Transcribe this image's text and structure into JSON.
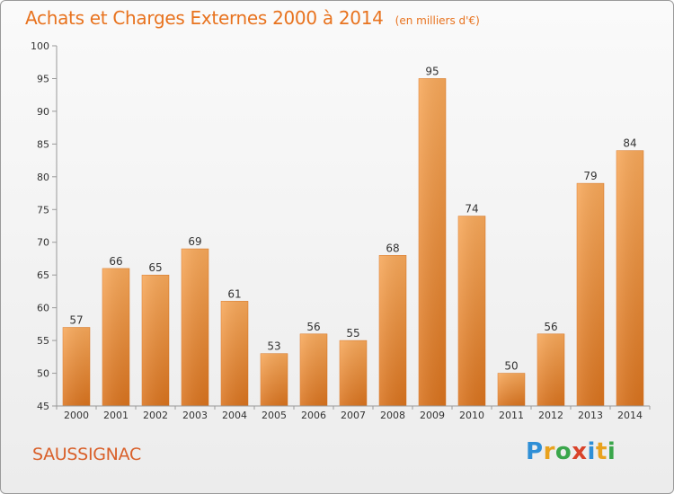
{
  "header": {
    "title": "Achats et Charges Externes 2000 à 2014",
    "unit": "(en milliers d'€)"
  },
  "footer": {
    "commune": "SAUSSIGNAC",
    "brand": "Proxiti"
  },
  "colors": {
    "title": "#e8731f",
    "bar_top": "#f7a85a",
    "bar_bottom": "#d9731e",
    "axis": "#999999",
    "tick_text": "#333333"
  },
  "chart_data": {
    "type": "bar",
    "categories": [
      "2000",
      "2001",
      "2002",
      "2003",
      "2004",
      "2005",
      "2006",
      "2007",
      "2008",
      "2009",
      "2010",
      "2011",
      "2012",
      "2013",
      "2014"
    ],
    "values": [
      57,
      66,
      65,
      69,
      61,
      53,
      56,
      55,
      68,
      95,
      74,
      50,
      56,
      79,
      84
    ],
    "title": "Achats et Charges Externes 2000 à 2014",
    "ylim": [
      45,
      100
    ],
    "yticks": [
      45,
      50,
      55,
      60,
      65,
      70,
      75,
      80,
      85,
      90,
      95,
      100
    ],
    "grid": false,
    "data_labels": true
  }
}
